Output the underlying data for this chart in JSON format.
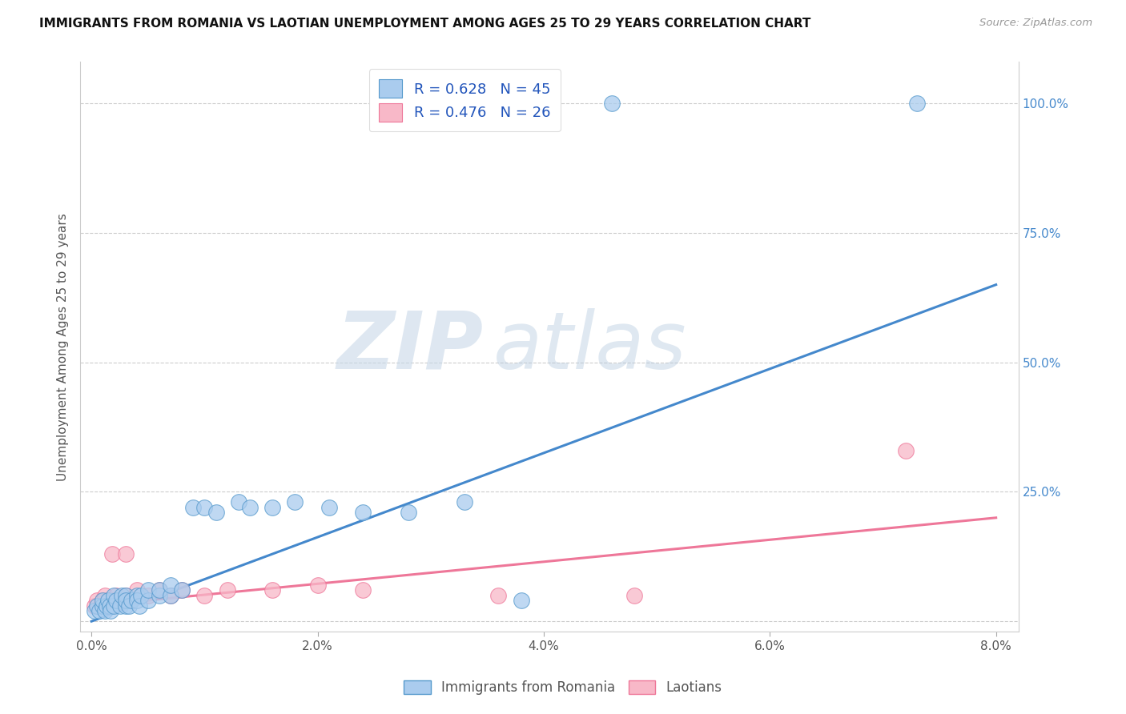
{
  "title": "IMMIGRANTS FROM ROMANIA VS LAOTIAN UNEMPLOYMENT AMONG AGES 25 TO 29 YEARS CORRELATION CHART",
  "source": "Source: ZipAtlas.com",
  "ylabel": "Unemployment Among Ages 25 to 29 years",
  "ytick_labels": [
    "",
    "25.0%",
    "50.0%",
    "75.0%",
    "100.0%"
  ],
  "ytick_values": [
    0,
    0.25,
    0.5,
    0.75,
    1.0
  ],
  "blue_R": 0.628,
  "blue_N": 45,
  "pink_R": 0.476,
  "pink_N": 26,
  "blue_color": "#aaccee",
  "pink_color": "#f8b8c8",
  "blue_edge_color": "#5599cc",
  "pink_edge_color": "#ee7799",
  "blue_line_color": "#4488cc",
  "pink_line_color": "#ee7799",
  "legend_blue_label": "Immigrants from Romania",
  "legend_pink_label": "Laotians",
  "watermark_zip": "ZIP",
  "watermark_atlas": "atlas",
  "blue_scatter_x": [
    0.0003,
    0.0005,
    0.0007,
    0.001,
    0.001,
    0.0012,
    0.0013,
    0.0015,
    0.0016,
    0.0017,
    0.002,
    0.002,
    0.0022,
    0.0025,
    0.0027,
    0.003,
    0.003,
    0.003,
    0.0033,
    0.0035,
    0.004,
    0.004,
    0.0042,
    0.0044,
    0.005,
    0.005,
    0.006,
    0.006,
    0.007,
    0.007,
    0.008,
    0.009,
    0.01,
    0.011,
    0.013,
    0.014,
    0.016,
    0.018,
    0.021,
    0.024,
    0.028,
    0.033,
    0.038,
    0.046,
    0.073
  ],
  "blue_scatter_y": [
    0.02,
    0.03,
    0.02,
    0.03,
    0.04,
    0.02,
    0.03,
    0.04,
    0.03,
    0.02,
    0.03,
    0.05,
    0.04,
    0.03,
    0.05,
    0.03,
    0.05,
    0.04,
    0.03,
    0.04,
    0.05,
    0.04,
    0.03,
    0.05,
    0.04,
    0.06,
    0.05,
    0.06,
    0.05,
    0.07,
    0.06,
    0.22,
    0.22,
    0.21,
    0.23,
    0.22,
    0.22,
    0.23,
    0.22,
    0.21,
    0.21,
    0.23,
    0.04,
    1.0,
    1.0
  ],
  "pink_scatter_x": [
    0.0003,
    0.0005,
    0.0008,
    0.001,
    0.0012,
    0.0015,
    0.0018,
    0.002,
    0.0022,
    0.0025,
    0.003,
    0.003,
    0.0035,
    0.004,
    0.005,
    0.006,
    0.007,
    0.008,
    0.01,
    0.012,
    0.016,
    0.02,
    0.024,
    0.036,
    0.048,
    0.072
  ],
  "pink_scatter_y": [
    0.03,
    0.04,
    0.03,
    0.04,
    0.05,
    0.04,
    0.13,
    0.04,
    0.05,
    0.04,
    0.05,
    0.13,
    0.04,
    0.06,
    0.05,
    0.06,
    0.05,
    0.06,
    0.05,
    0.06,
    0.06,
    0.07,
    0.06,
    0.05,
    0.05,
    0.33
  ],
  "blue_trend_x": [
    0.0,
    0.08
  ],
  "blue_trend_y": [
    0.0,
    0.65
  ],
  "pink_trend_x": [
    0.0,
    0.08
  ],
  "pink_trend_y": [
    0.03,
    0.2
  ],
  "xlim": [
    -0.001,
    0.082
  ],
  "ylim": [
    -0.02,
    1.08
  ],
  "xtick_vals": [
    0.0,
    0.02,
    0.04,
    0.06,
    0.08
  ],
  "xtick_labels": [
    "0.0%",
    "2.0%",
    "4.0%",
    "6.0%",
    "8.0%"
  ]
}
